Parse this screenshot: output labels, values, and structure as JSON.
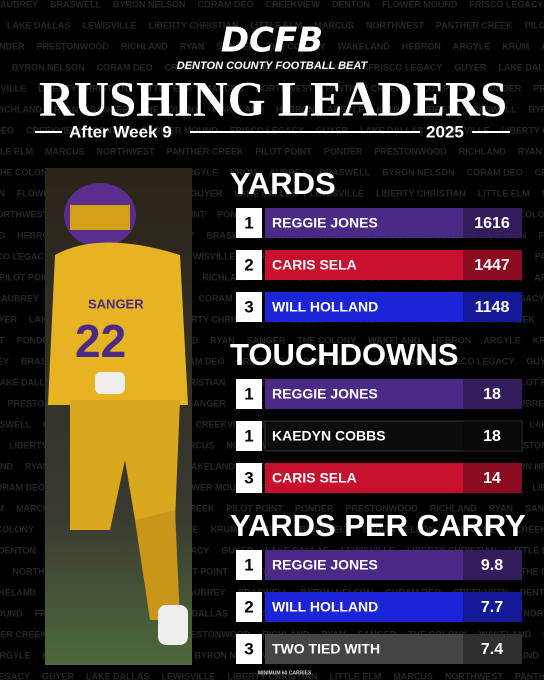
{
  "header": {
    "logo": "DCFB",
    "subtitle": "DENTON COUNTY FOOTBALL BEAT",
    "title": "RUSHING LEADERS",
    "week": "After Week 9",
    "year": "2025"
  },
  "sections": [
    {
      "title": "YARDS",
      "rows": [
        {
          "rank": 1,
          "name": "REGGIE JONES",
          "value": 1616,
          "color": "#4b2a86"
        },
        {
          "rank": 2,
          "name": "CARIS SELA",
          "value": 1447,
          "color": "#c8102e"
        },
        {
          "rank": 3,
          "name": "WILL HOLLAND",
          "value": 1148,
          "color": "#1c24d8"
        }
      ]
    },
    {
      "title": "TOUCHDOWNS",
      "rows": [
        {
          "rank": 1,
          "name": "REGGIE JONES",
          "value": 18,
          "color": "#4b2a86"
        },
        {
          "rank": 1,
          "name": "KAEDYN COBBS",
          "value": 18,
          "color": "#0c0c0c"
        },
        {
          "rank": 3,
          "name": "CARIS SELA",
          "value": 14,
          "color": "#c8102e"
        }
      ]
    },
    {
      "title": "YARDS PER CARRY",
      "rows": [
        {
          "rank": 1,
          "name": "REGGIE JONES",
          "value": 9.8,
          "color": "#4b2a86"
        },
        {
          "rank": 2,
          "name": "WILL HOLLAND",
          "value": 7.7,
          "color": "#1c24d8"
        },
        {
          "rank": 3,
          "name": "TWO TIED WITH",
          "value": 7.4,
          "color": "#444444"
        }
      ]
    }
  ],
  "note": "MINIMUM 60 CARRIES",
  "background_names": [
    "AUBREY",
    "BRASWELL",
    "BYRON NELSON",
    "CORAM DEO",
    "CREEKVIEW",
    "DENTON",
    "FLOWER MOUND",
    "FRISCO LEGACY",
    "GUYER",
    "LAKE DALLAS",
    "LEWISVILLE",
    "LIBERTY CHRISTIAN",
    "LITTLE ELM",
    "MARCUS",
    "NORTHWEST",
    "PANTHER CREEK",
    "PILOT POINT",
    "PONDER",
    "PRESTONWOOD",
    "RICHLAND",
    "RYAN",
    "SANGER",
    "THE COLONY",
    "WAKELAND",
    "HEBRON",
    "ARGYLE",
    "KRUM"
  ]
}
